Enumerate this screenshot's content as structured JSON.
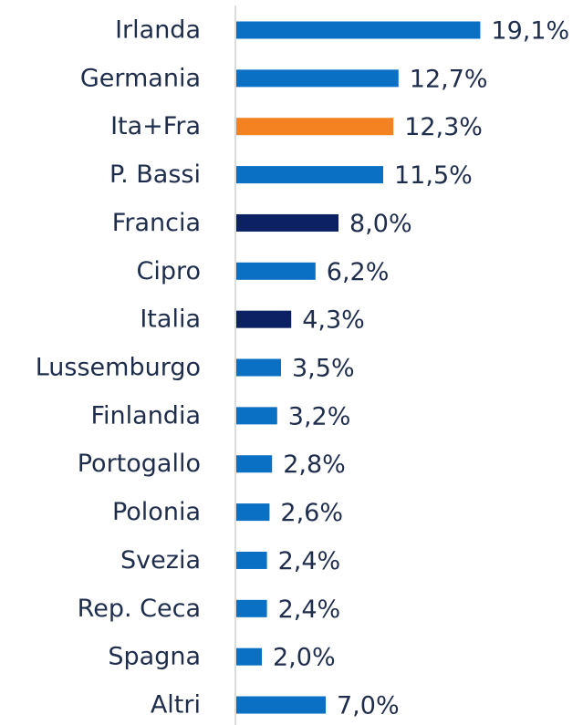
{
  "chart_data": {
    "type": "bar",
    "orientation": "horizontal",
    "categories": [
      "Irlanda",
      "Germania",
      "Ita+Fra",
      "P. Bassi",
      "Francia",
      "Cipro",
      "Italia",
      "Lussemburgo",
      "Finlandia",
      "Portogallo",
      "Polonia",
      "Svezia",
      "Rep. Ceca",
      "Spagna",
      "Altri"
    ],
    "values": [
      19.1,
      12.7,
      12.3,
      11.5,
      8.0,
      6.2,
      4.3,
      3.5,
      3.2,
      2.8,
      2.6,
      2.4,
      2.4,
      2.0,
      7.0
    ],
    "value_labels": [
      "19,1%",
      "12,7%",
      "12,3%",
      "11,5%",
      "8,0%",
      "6,2%",
      "4,3%",
      "3,5%",
      "3,2%",
      "2,8%",
      "2,6%",
      "2,4%",
      "2,4%",
      "2,0%",
      "7,0%"
    ],
    "colors": [
      "#0a70c4",
      "#0a70c4",
      "#f58220",
      "#0a70c4",
      "#0b2163",
      "#0a70c4",
      "#0b2163",
      "#0a70c4",
      "#0a70c4",
      "#0a70c4",
      "#0a70c4",
      "#0a70c4",
      "#0a70c4",
      "#0a70c4",
      "#0a70c4"
    ]
  }
}
